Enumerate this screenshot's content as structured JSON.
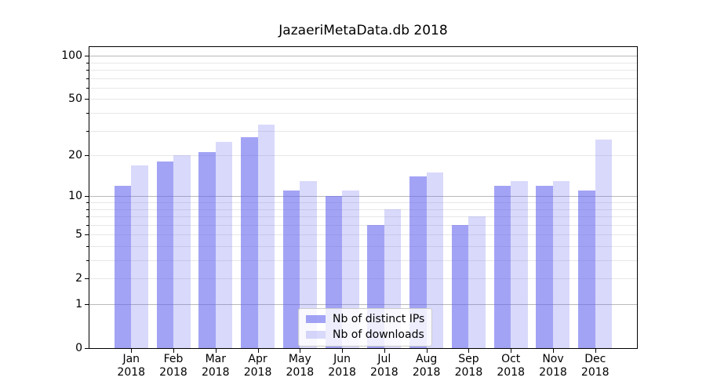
{
  "chart_data": {
    "type": "bar",
    "title": "JazaeriMetaData.db 2018",
    "categories": [
      "Jan",
      "Feb",
      "Mar",
      "Apr",
      "May",
      "Jun",
      "Jul",
      "Aug",
      "Sep",
      "Oct",
      "Nov",
      "Dec"
    ],
    "year_label": "2018",
    "series": [
      {
        "name": "Nb of distinct IPs",
        "color": "rgba(102,102,238,0.6)",
        "values": [
          12,
          18,
          21,
          27,
          11,
          10,
          6,
          14,
          6,
          12,
          12,
          11
        ]
      },
      {
        "name": "Nb of downloads",
        "color": "rgba(102,102,238,0.25)",
        "values": [
          17,
          20,
          25,
          33,
          13,
          11,
          8,
          15,
          7,
          13,
          13,
          26
        ]
      }
    ],
    "xlabel": "",
    "ylabel": "",
    "yscale": "log1p",
    "ylim": [
      0,
      115
    ],
    "yticks": [
      0,
      1,
      2,
      5,
      10,
      20,
      50,
      100
    ],
    "major_gridlines": [
      1,
      10,
      100
    ],
    "minor_gridlines": [
      2,
      3,
      4,
      5,
      6,
      7,
      8,
      9,
      20,
      30,
      40,
      50,
      60,
      70,
      80,
      90
    ],
    "grid": true,
    "legend_position": "lower center",
    "colors": {
      "bar_distinct_ips": "#a3a3f5",
      "bar_downloads": "#d9d9fb",
      "major_grid": "#b9b9b9",
      "minor_grid": "#e7e7e7",
      "axis": "#000000",
      "legend_bg": "rgba(255,255,255,0.8)",
      "legend_border": "#cccccc"
    }
  }
}
